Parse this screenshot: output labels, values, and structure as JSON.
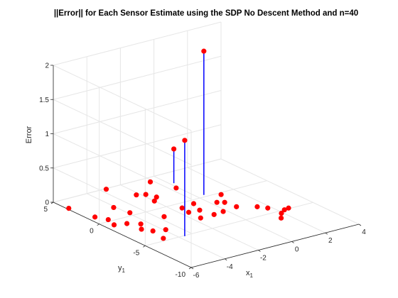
{
  "chart_data": {
    "type": "scatter",
    "projection": "3d-stem",
    "title": "||Error|| for Each Sensor Estimate using the SDP No Descent Method and n=40",
    "xlabel": "x",
    "xlabel_sub": "1",
    "ylabel": "y",
    "ylabel_sub": "1",
    "zlabel": "Error",
    "xlim": [
      -6,
      4
    ],
    "ylim": [
      -10,
      5
    ],
    "zlim": [
      0,
      2
    ],
    "xticks": [
      -6,
      -4,
      -2,
      0,
      2,
      4
    ],
    "yticks": [
      -10,
      -5,
      0,
      5
    ],
    "zticks": [
      0,
      0.5,
      1,
      1.5,
      2
    ],
    "xtick_labels": [
      "-6",
      "-4",
      "-2",
      "0",
      "2",
      "4"
    ],
    "ytick_labels": [
      "-10",
      "-5",
      "0",
      "5"
    ],
    "ztick_labels": [
      "0",
      "0.5",
      "1",
      "1.5",
      "2"
    ],
    "grid": true,
    "marker_color": "#ff0000",
    "stem_color": "#0000ff",
    "points": [
      {
        "x": -5.9,
        "y": 3.5,
        "z": 0
      },
      {
        "x": -5.6,
        "y": 1.2,
        "z": 0
      },
      {
        "x": -5.3,
        "y": 0.3,
        "z": 0
      },
      {
        "x": -5.5,
        "y": -0.7,
        "z": 0
      },
      {
        "x": -4.8,
        "y": -2.4,
        "z": 0
      },
      {
        "x": -4.5,
        "y": -3.1,
        "z": 0
      },
      {
        "x": -4.7,
        "y": -4.6,
        "z": 0
      },
      {
        "x": -4.9,
        "y": -1.0,
        "z": 0
      },
      {
        "x": -4.4,
        "y": -1.6,
        "z": 0
      },
      {
        "x": -3.9,
        "y": 0.5,
        "z": 0
      },
      {
        "x": -4.1,
        "y": 1.9,
        "z": 0
      },
      {
        "x": -3.9,
        "y": -3.4,
        "z": 0
      },
      {
        "x": -2.9,
        "y": -1.4,
        "z": 0
      },
      {
        "x": -3.7,
        "y": -5.1,
        "z": 1.4
      },
      {
        "x": -2.9,
        "y": 4.9,
        "z": 0
      },
      {
        "x": -1.8,
        "y": 2.6,
        "z": 0
      },
      {
        "x": -2.2,
        "y": 2.9,
        "z": 0
      },
      {
        "x": -2.0,
        "y": 1.3,
        "z": 0
      },
      {
        "x": -1.6,
        "y": 1.8,
        "z": 0
      },
      {
        "x": -1.5,
        "y": -0.8,
        "z": 0
      },
      {
        "x": -1.6,
        "y": -1.7,
        "z": 0
      },
      {
        "x": -1.6,
        "y": -3.0,
        "z": 0
      },
      {
        "x": -0.7,
        "y": -0.6,
        "z": 0
      },
      {
        "x": -1.0,
        "y": -1.8,
        "z": 0
      },
      {
        "x": -0.8,
        "y": -3.0,
        "z": 0
      },
      {
        "x": -0.2,
        "y": -2.9,
        "z": 0
      },
      {
        "x": -0.1,
        "y": 2.4,
        "z": 0
      },
      {
        "x": -0.6,
        "y": 4.3,
        "z": 0
      },
      {
        "x": 0.2,
        "y": 3.2,
        "z": 0.5
      },
      {
        "x": 0.4,
        "y": 0.3,
        "z": 2.1
      },
      {
        "x": 0.3,
        "y": -1.3,
        "z": 0
      },
      {
        "x": 0.6,
        "y": -1.6,
        "z": 0
      },
      {
        "x": 0.7,
        "y": -2.7,
        "z": 0
      },
      {
        "x": 1.1,
        "y": -0.3,
        "z": 0
      },
      {
        "x": 1.5,
        "y": -3.5,
        "z": 0
      },
      {
        "x": 1.8,
        "y": -4.1,
        "z": 0
      },
      {
        "x": 1.9,
        "y": -5.4,
        "z": 0
      },
      {
        "x": 2.3,
        "y": -5.0,
        "z": 0
      },
      {
        "x": 2.6,
        "y": -4.9,
        "z": 0
      },
      {
        "x": 1.5,
        "y": -6.1,
        "z": 0
      }
    ]
  }
}
